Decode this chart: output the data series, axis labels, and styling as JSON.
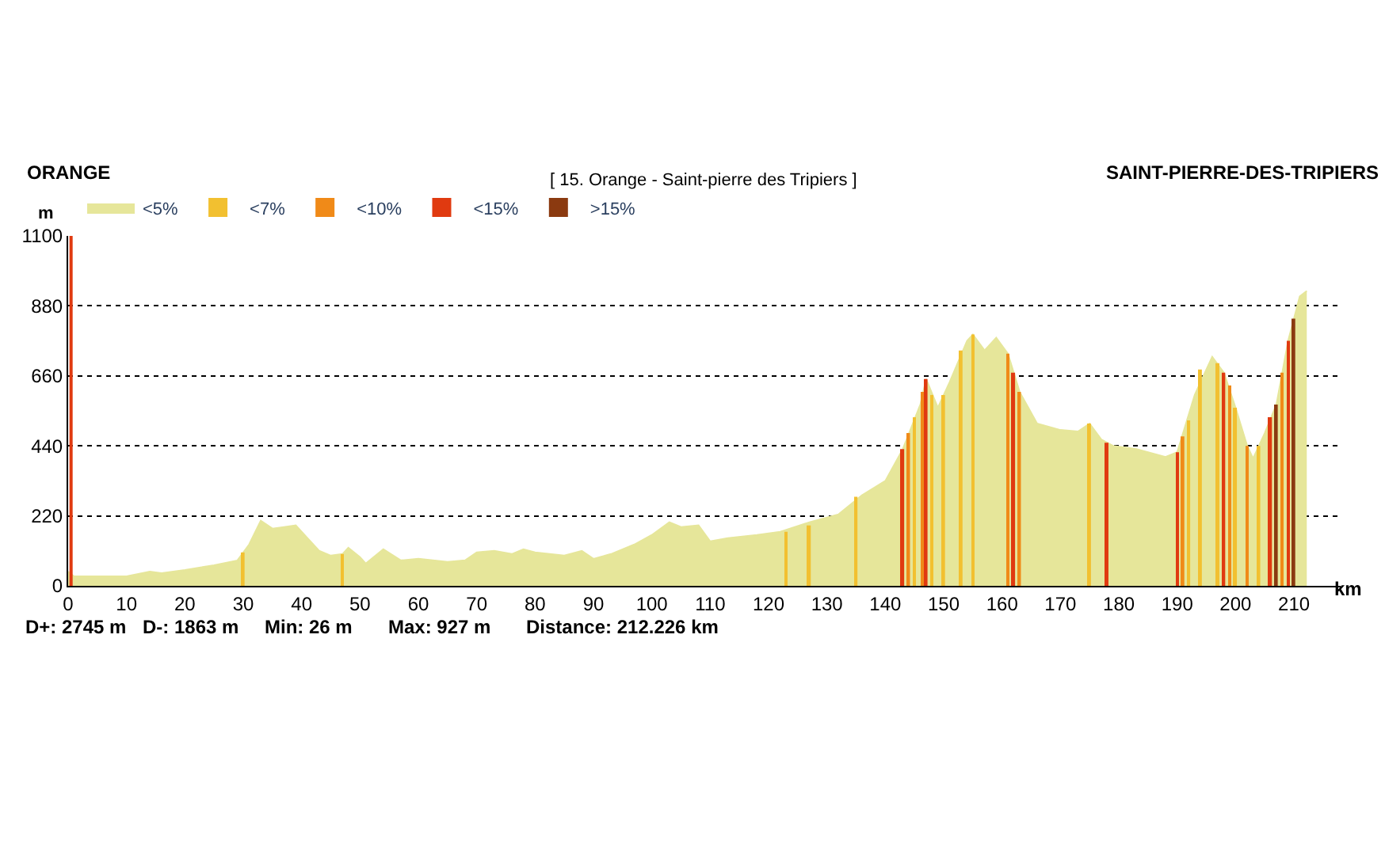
{
  "chart_data": {
    "type": "area",
    "title": "[ 15. Orange - Saint-pierre des Tripiers ]",
    "xlabel": "km",
    "ylabel": "m",
    "annotations": [
      "ORANGE",
      "SAINT-PIERRE-DES-TRIPIERS",
      "D+: 2745 m",
      "D-: 1863 m",
      "Min: 26 m",
      "Max: 927 m",
      "Distance: 212.226 km"
    ],
    "xlim": [
      0,
      218
    ],
    "xticks": [
      0,
      10,
      20,
      30,
      40,
      50,
      60,
      70,
      80,
      90,
      100,
      110,
      120,
      130,
      140,
      150,
      160,
      170,
      180,
      190,
      200,
      210
    ],
    "ylim": [
      0,
      1100
    ],
    "yticks": [
      0,
      220,
      440,
      660,
      880,
      1100
    ],
    "grid": "y",
    "legend": "top left",
    "marker": "none",
    "ref_lines": [
      {
        "axis": "x",
        "value": 0.5,
        "color": "#e03a10"
      }
    ],
    "series": [
      {
        "name": "<5%",
        "color": "#e6e69a",
        "x": [
          0,
          1,
          10,
          14,
          16,
          20,
          25,
          29,
          31,
          33,
          35,
          37,
          39,
          41,
          43,
          45,
          47,
          48,
          50,
          51,
          54,
          57,
          60,
          65,
          68,
          70,
          73,
          76,
          78,
          80,
          85,
          88,
          90,
          93,
          97,
          100,
          103,
          105,
          108,
          110,
          113,
          118,
          122,
          127,
          132,
          136,
          140,
          143,
          146,
          147,
          149,
          151,
          154,
          155,
          157,
          159,
          161,
          163,
          166,
          170,
          173,
          175,
          177,
          179,
          183,
          188,
          190,
          193,
          196,
          198,
          200,
          202,
          203,
          205,
          207,
          209,
          211,
          212.2
        ],
        "values": [
          45,
          30,
          30,
          45,
          40,
          50,
          65,
          80,
          130,
          205,
          180,
          185,
          190,
          150,
          110,
          95,
          100,
          120,
          90,
          70,
          115,
          80,
          85,
          75,
          80,
          105,
          110,
          100,
          115,
          105,
          95,
          110,
          85,
          100,
          130,
          160,
          200,
          185,
          190,
          140,
          150,
          160,
          170,
          200,
          225,
          285,
          330,
          430,
          570,
          650,
          560,
          640,
          770,
          790,
          740,
          780,
          730,
          610,
          510,
          490,
          485,
          510,
          460,
          440,
          430,
          405,
          420,
          600,
          720,
          670,
          560,
          440,
          400,
          480,
          570,
          770,
          910,
          927
        ]
      },
      {
        "name": "<7%",
        "color": "#f2c030",
        "type": "bar",
        "x": [
          30,
          47,
          123,
          127,
          135,
          145,
          148,
          150,
          153,
          155,
          175,
          192,
          194,
          197,
          200,
          204
        ],
        "values": [
          105,
          100,
          170,
          190,
          280,
          530,
          600,
          600,
          740,
          790,
          510,
          520,
          680,
          700,
          560,
          440
        ]
      },
      {
        "name": "<10%",
        "color": "#f08a18",
        "type": "bar",
        "x": [
          144,
          146.5,
          161,
          163,
          191,
          199,
          202,
          208
        ],
        "values": [
          480,
          610,
          730,
          610,
          470,
          630,
          440,
          670
        ]
      },
      {
        "name": "<15%",
        "color": "#e03a10",
        "type": "bar",
        "x": [
          143,
          147,
          162,
          178,
          190,
          198,
          206,
          209
        ],
        "values": [
          430,
          650,
          670,
          450,
          420,
          670,
          530,
          770
        ]
      },
      {
        "name": ">15%",
        "color": "#8b3a10",
        "type": "bar",
        "x": [
          207,
          210
        ],
        "values": [
          570,
          840
        ]
      }
    ]
  }
}
